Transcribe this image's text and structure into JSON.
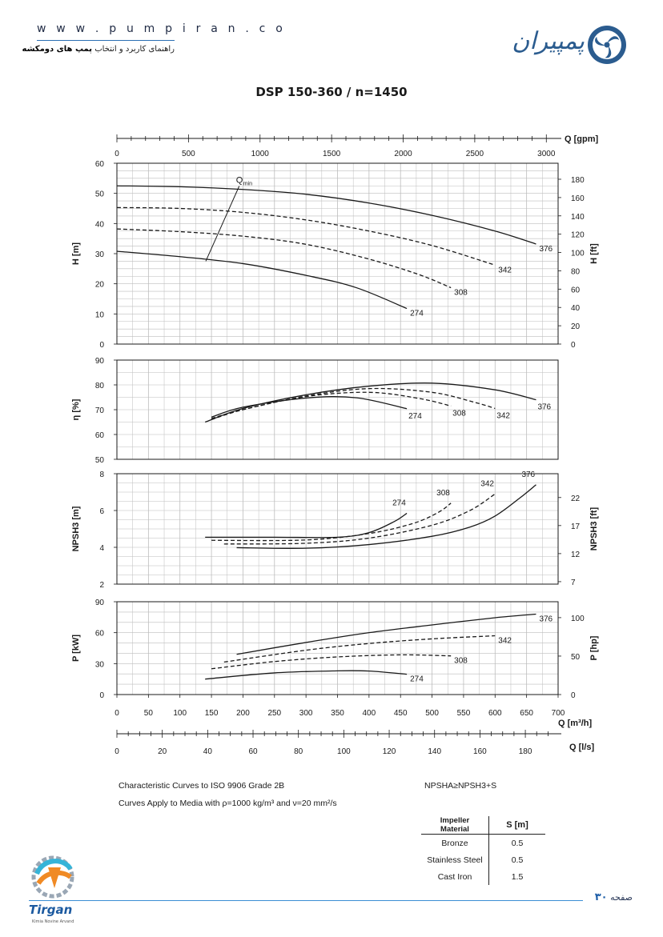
{
  "header": {
    "url": "w w w . p u m p i r a n . c o",
    "subtitle_prefix": "راهنمای کاربرد و انتخاب",
    "subtitle_bold": "پمپ های دومکشه",
    "brand": "پمپیران"
  },
  "footer": {
    "page_label": "صفحه",
    "page_number": "۳۰",
    "tirgan_name": "Tirgan",
    "tirgan_tagline": "Kimia Novine Arvand"
  },
  "colors": {
    "line": "#1a1a1a",
    "grid": "#bdbdbd",
    "accent": "#2b6fb3"
  },
  "chart_data": {
    "type": "line",
    "title": "DSP 150-360 / n=1450",
    "x_axes": [
      {
        "label": "Q [gpm]",
        "ticks": [
          "0",
          "500",
          "1000",
          "1500",
          "2000",
          "2500",
          "3000"
        ]
      },
      {
        "label": "Q [m³/h]",
        "ticks": [
          "0",
          "50",
          "100",
          "150",
          "200",
          "250",
          "300",
          "350",
          "400",
          "450",
          "500",
          "550",
          "600",
          "650",
          "700"
        ],
        "range": [
          0,
          700
        ]
      },
      {
        "label": "Q [l/s]",
        "ticks": [
          "0",
          "20",
          "40",
          "60",
          "80",
          "100",
          "120",
          "140",
          "160",
          "180"
        ]
      }
    ],
    "panels": [
      {
        "id": "head",
        "ylabel": "H [m]",
        "ylim": [
          0,
          60
        ],
        "yticks": [
          "0",
          "10",
          "20",
          "30",
          "40",
          "50",
          "60"
        ],
        "y2label": "H [ft]",
        "y2ticks": [
          "0",
          "20",
          "40",
          "60",
          "80",
          "100",
          "120",
          "140",
          "160",
          "180"
        ],
        "qmin_label": "Q",
        "qmin_sub": "min",
        "qmin_line": [
          [
            141,
            27.5
          ],
          [
            194,
            52.4
          ]
        ],
        "series": [
          {
            "name": "376",
            "style": "solid",
            "points": [
              [
                0,
                52.5
              ],
              [
                100,
                52.2
              ],
              [
                200,
                51.3
              ],
              [
                300,
                49.7
              ],
              [
                400,
                46.8
              ],
              [
                500,
                42.7
              ],
              [
                600,
                37.5
              ],
              [
                665,
                33.2
              ]
            ]
          },
          {
            "name": "342",
            "style": "dashed",
            "points": [
              [
                0,
                45.3
              ],
              [
                100,
                45.0
              ],
              [
                200,
                43.7
              ],
              [
                300,
                41.2
              ],
              [
                400,
                37.5
              ],
              [
                500,
                32.7
              ],
              [
                600,
                26.2
              ]
            ]
          },
          {
            "name": "308",
            "style": "dashed",
            "points": [
              [
                0,
                38.2
              ],
              [
                100,
                37.3
              ],
              [
                200,
                35.8
              ],
              [
                300,
                33.1
              ],
              [
                400,
                28.2
              ],
              [
                480,
                23.0
              ],
              [
                530,
                18.7
              ]
            ]
          },
          {
            "name": "274",
            "style": "solid",
            "points": [
              [
                0,
                30.8
              ],
              [
                100,
                29.0
              ],
              [
                200,
                26.7
              ],
              [
                300,
                22.8
              ],
              [
                380,
                18.7
              ],
              [
                460,
                11.8
              ]
            ]
          }
        ]
      },
      {
        "id": "efficiency",
        "ylabel": "η [%]",
        "ylim": [
          50,
          90
        ],
        "yticks": [
          "50",
          "60",
          "70",
          "80",
          "90"
        ],
        "series": [
          {
            "name": "376",
            "style": "solid",
            "points": [
              [
                140,
                65.0
              ],
              [
                200,
                70.5
              ],
              [
                300,
                76.0
              ],
              [
                400,
                79.5
              ],
              [
                500,
                80.7
              ],
              [
                600,
                78.0
              ],
              [
                665,
                74.0
              ]
            ]
          },
          {
            "name": "342",
            "style": "dashed",
            "points": [
              [
                150,
                66.0
              ],
              [
                200,
                70.0
              ],
              [
                300,
                75.5
              ],
              [
                400,
                78.5
              ],
              [
                500,
                77.0
              ],
              [
                570,
                72.8
              ],
              [
                600,
                70.5
              ]
            ]
          },
          {
            "name": "308",
            "style": "dashed",
            "points": [
              [
                150,
                66.5
              ],
              [
                200,
                70.0
              ],
              [
                300,
                75.3
              ],
              [
                400,
                77.0
              ],
              [
                480,
                74.5
              ],
              [
                530,
                71.5
              ]
            ]
          },
          {
            "name": "274",
            "style": "solid",
            "points": [
              [
                150,
                67.0
              ],
              [
                200,
                71.0
              ],
              [
                300,
                74.7
              ],
              [
                380,
                74.8
              ],
              [
                460,
                70.4
              ]
            ]
          }
        ]
      },
      {
        "id": "npsh",
        "ylabel": "NPSH3 [m]",
        "ylim": [
          2,
          8
        ],
        "yticks": [
          "2",
          "4",
          "6",
          "8"
        ],
        "y2label": "NPSH3 [ft]",
        "y2ticks": [
          "7",
          "12",
          "17",
          "22"
        ],
        "series": [
          {
            "name": "376",
            "style": "solid",
            "points": [
              [
                190,
                3.98
              ],
              [
                300,
                3.95
              ],
              [
                400,
                4.15
              ],
              [
                500,
                4.6
              ],
              [
                560,
                5.1
              ],
              [
                600,
                5.7
              ],
              [
                640,
                6.7
              ],
              [
                665,
                7.4
              ]
            ]
          },
          {
            "name": "342",
            "style": "dashed",
            "points": [
              [
                170,
                4.18
              ],
              [
                300,
                4.22
              ],
              [
                400,
                4.5
              ],
              [
                500,
                5.2
              ],
              [
                560,
                6.0
              ],
              [
                600,
                6.9
              ]
            ]
          },
          {
            "name": "308",
            "style": "dashed",
            "points": [
              [
                150,
                4.38
              ],
              [
                300,
                4.4
              ],
              [
                400,
                4.75
              ],
              [
                470,
                5.3
              ],
              [
                510,
                5.9
              ],
              [
                530,
                6.4
              ]
            ]
          },
          {
            "name": "274",
            "style": "solid",
            "points": [
              [
                140,
                4.55
              ],
              [
                250,
                4.55
              ],
              [
                350,
                4.55
              ],
              [
                400,
                4.8
              ],
              [
                440,
                5.4
              ],
              [
                460,
                5.85
              ]
            ]
          }
        ]
      },
      {
        "id": "power",
        "ylabel": "P [kW]",
        "ylim": [
          0,
          90
        ],
        "yticks": [
          "0",
          "30",
          "60",
          "90"
        ],
        "y2label": "P [hp]",
        "y2ticks": [
          "0",
          "50",
          "100"
        ],
        "series": [
          {
            "name": "376",
            "style": "solid",
            "points": [
              [
                190,
                39.0
              ],
              [
                300,
                50.5
              ],
              [
                400,
                60.0
              ],
              [
                500,
                67.5
              ],
              [
                600,
                74.5
              ],
              [
                665,
                78.0
              ]
            ]
          },
          {
            "name": "342",
            "style": "dashed",
            "points": [
              [
                170,
                31.5
              ],
              [
                300,
                43.0
              ],
              [
                400,
                49.5
              ],
              [
                500,
                54.0
              ],
              [
                600,
                57.0
              ]
            ]
          },
          {
            "name": "308",
            "style": "dashed",
            "points": [
              [
                150,
                25.0
              ],
              [
                250,
                32.0
              ],
              [
                350,
                36.5
              ],
              [
                450,
                38.5
              ],
              [
                530,
                37.5
              ]
            ]
          },
          {
            "name": "274",
            "style": "solid",
            "points": [
              [
                140,
                15.0
              ],
              [
                250,
                21.0
              ],
              [
                350,
                23.0
              ],
              [
                400,
                22.8
              ],
              [
                460,
                19.7
              ]
            ]
          }
        ]
      }
    ]
  },
  "notes": {
    "line1": "Characteristic Curves to ISO 9906 Grade 2B",
    "line2": "Curves Apply to Media with ρ=1000 kg/m³ and ν=20 mm²/s",
    "npsh_formula": "NPSHA≥NPSH3+S",
    "table": {
      "headers": [
        "Impeller Material",
        "S [m]"
      ],
      "rows": [
        [
          "Bronze",
          "0.5"
        ],
        [
          "Stainless Steel",
          "0.5"
        ],
        [
          "Cast Iron",
          "1.5"
        ]
      ]
    }
  }
}
